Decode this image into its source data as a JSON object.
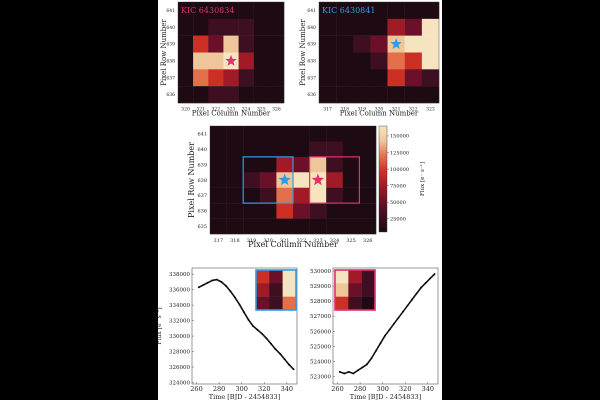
{
  "colors": {
    "page_bg": "#000000",
    "figure_bg": "#ffffff",
    "cmap": [
      "#1e0a12",
      "#3d0f20",
      "#6b1028",
      "#a01a28",
      "#cc3025",
      "#e3704a",
      "#efc59a",
      "#f6e4c0"
    ],
    "blue": "#2f9be6",
    "pink": "#e0306f"
  },
  "chart_data": [
    {
      "type": "heatmap",
      "title": "KIC 6430834",
      "xlabel": "Pixel Column Number",
      "ylabel": "Pixel Row Number",
      "x_ticks": [
        "320",
        "321",
        "322",
        "323",
        "324",
        "325",
        "326"
      ],
      "y_ticks": [
        "641",
        "640",
        "639",
        "638",
        "637",
        "636"
      ],
      "grid": [
        [
          0,
          0,
          0,
          0,
          0,
          0,
          0
        ],
        [
          0,
          0,
          1,
          1,
          1,
          0,
          0
        ],
        [
          0,
          4,
          2,
          6,
          1,
          0,
          0
        ],
        [
          0,
          6,
          6,
          7,
          3,
          0,
          0
        ],
        [
          0,
          5,
          4,
          3,
          1,
          0,
          0
        ],
        [
          0,
          0,
          1,
          1,
          0,
          0,
          0
        ]
      ],
      "star": {
        "col": "323",
        "row": "638",
        "color": "pink"
      }
    },
    {
      "type": "heatmap",
      "title": "KIC 6430841",
      "xlabel": "Pixel Column Number",
      "ylabel": "Pixel Row Number",
      "x_ticks": [
        "317",
        "318",
        "319",
        "320",
        "321",
        "322",
        "323"
      ],
      "y_ticks": [
        "641",
        "640",
        "639",
        "638",
        "637",
        "636"
      ],
      "grid": [
        [
          0,
          0,
          0,
          0,
          0,
          0,
          0
        ],
        [
          0,
          0,
          0,
          0,
          3,
          2,
          7
        ],
        [
          0,
          0,
          1,
          2,
          6,
          7,
          7
        ],
        [
          0,
          0,
          0,
          1,
          5,
          4,
          7
        ],
        [
          0,
          0,
          0,
          0,
          4,
          2,
          1
        ],
        [
          0,
          0,
          0,
          0,
          0,
          0,
          0
        ]
      ],
      "star": {
        "col": "321",
        "row": "639",
        "color": "blue"
      }
    },
    {
      "type": "heatmap",
      "xlabel": "Pixel Column Number",
      "ylabel": "Pixel Row Number",
      "colorbar_label": "Flux [e⁻ s⁻¹]",
      "colorbar_ticks": [
        "150000",
        "125000",
        "100000",
        "75000",
        "50000",
        "25000"
      ],
      "colorbar_values": [
        150000,
        125000,
        100000,
        75000,
        50000,
        25000
      ],
      "colorbar_range": [
        5000,
        165000
      ],
      "x_ticks": [
        "317",
        "318",
        "319",
        "320",
        "321",
        "322",
        "323",
        "324",
        "325",
        "326"
      ],
      "y_ticks": [
        "641",
        "640",
        "639",
        "638",
        "637",
        "636",
        "635"
      ],
      "grid": [
        [
          0,
          0,
          0,
          0,
          0,
          0,
          0,
          0,
          0,
          0
        ],
        [
          0,
          0,
          0,
          0,
          0,
          0,
          1,
          1,
          0,
          0
        ],
        [
          0,
          0,
          0,
          0,
          3,
          2,
          6,
          1,
          0,
          0
        ],
        [
          0,
          0,
          1,
          2,
          6,
          7,
          7,
          3,
          0,
          0
        ],
        [
          0,
          0,
          0,
          1,
          5,
          3,
          7,
          1,
          0,
          0
        ],
        [
          0,
          0,
          0,
          0,
          4,
          2,
          1,
          0,
          0,
          0
        ],
        [
          0,
          0,
          0,
          0,
          0,
          0,
          0,
          0,
          0,
          0
        ]
      ],
      "stars": [
        {
          "col": "321",
          "row": "638",
          "color": "blue"
        },
        {
          "col": "323",
          "row": "638",
          "color": "pink"
        }
      ],
      "apertures": [
        {
          "color": "blue",
          "cols": [
            "319",
            "321"
          ],
          "rows": [
            "639",
            "637"
          ]
        },
        {
          "color": "pink",
          "cols": [
            "323",
            "325"
          ],
          "rows": [
            "639",
            "637"
          ]
        }
      ]
    },
    {
      "type": "line",
      "xlabel": "Time [BJD - 2454833]",
      "ylabel": "Flux [e⁻ s⁻¹]",
      "x_ticks": [
        260,
        280,
        300,
        320,
        340
      ],
      "y_ticks": [
        338000,
        336000,
        334000,
        332000,
        330000,
        328000,
        326000,
        324000
      ],
      "xlim": [
        256,
        349
      ],
      "ylim": [
        323800,
        338800
      ],
      "series": [
        {
          "x": [
            262,
            266,
            270,
            274,
            278,
            282,
            286,
            290,
            294,
            298,
            302,
            306,
            310,
            314,
            318,
            322,
            326,
            330,
            334,
            338,
            342,
            346
          ],
          "values": [
            336300,
            336600,
            336900,
            337200,
            337300,
            337000,
            336500,
            335800,
            335000,
            334100,
            333100,
            332100,
            331300,
            330800,
            330300,
            329700,
            329000,
            328300,
            327700,
            327000,
            326300,
            325700
          ]
        }
      ],
      "inset": {
        "color": "blue",
        "grid": [
          [
            4,
            2,
            7
          ],
          [
            3,
            1,
            7
          ],
          [
            2,
            1,
            5
          ]
        ]
      }
    },
    {
      "type": "line",
      "xlabel": "Time [BJD - 2454833]",
      "x_ticks": [
        260,
        280,
        300,
        320,
        340
      ],
      "y_ticks": [
        530000,
        529000,
        528000,
        527000,
        526000,
        525000,
        524000,
        523000
      ],
      "xlim": [
        256,
        349
      ],
      "ylim": [
        522500,
        530200
      ],
      "series": [
        {
          "x": [
            262,
            266,
            270,
            274,
            278,
            282,
            286,
            290,
            294,
            298,
            302,
            306,
            310,
            314,
            318,
            322,
            326,
            330,
            334,
            338,
            342,
            346
          ],
          "values": [
            523300,
            523200,
            523300,
            523200,
            523400,
            523600,
            523800,
            524200,
            524700,
            525200,
            525700,
            526100,
            526500,
            526900,
            527300,
            527700,
            528100,
            528500,
            528900,
            529200,
            529500,
            529800
          ]
        }
      ],
      "inset": {
        "color": "pink",
        "grid": [
          [
            7,
            3,
            1
          ],
          [
            6,
            2,
            1
          ],
          [
            4,
            1,
            0
          ]
        ]
      }
    }
  ]
}
